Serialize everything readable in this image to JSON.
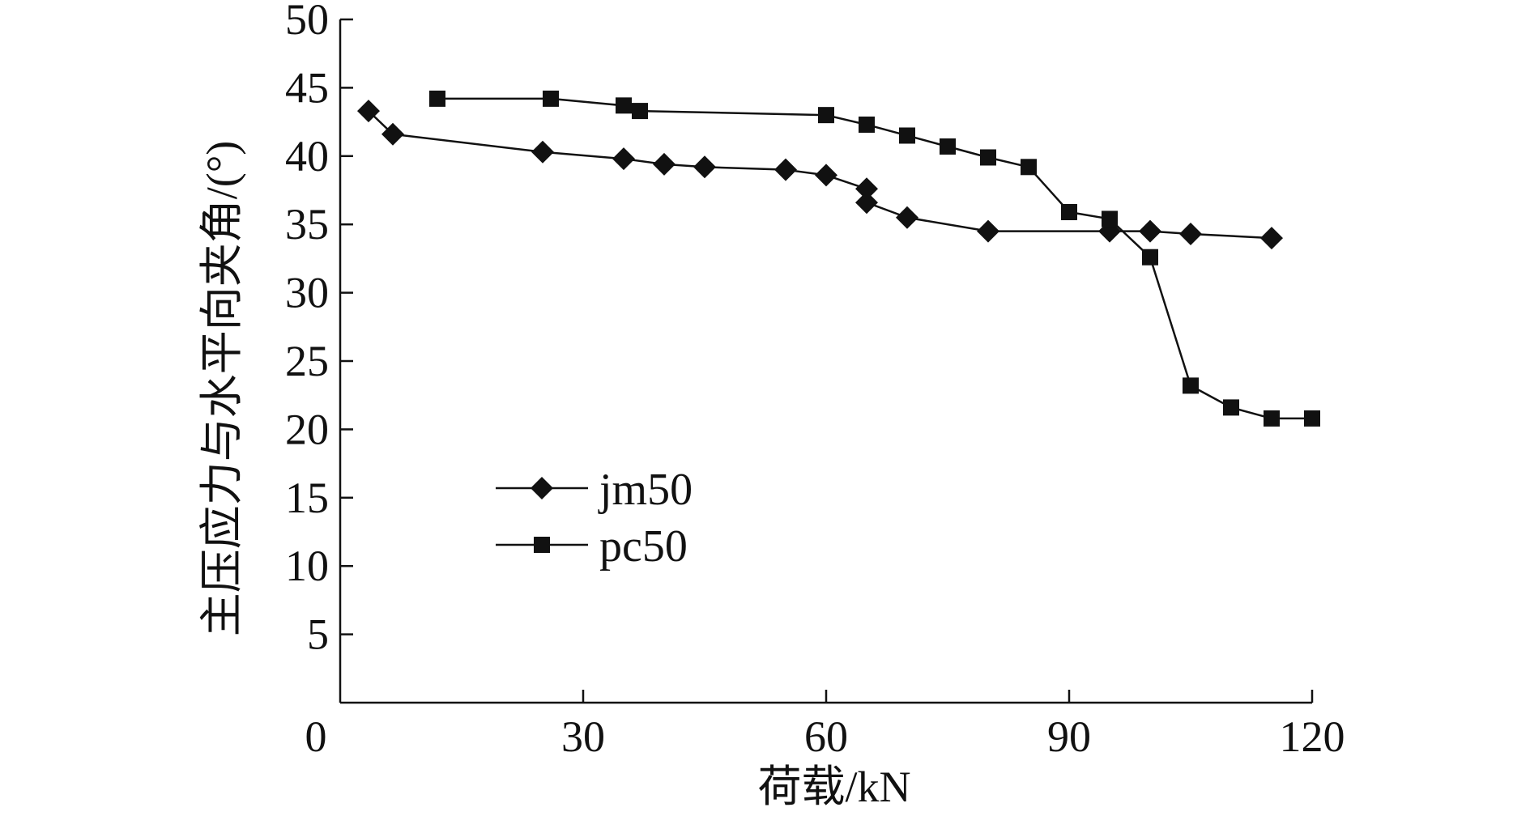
{
  "chart_data": {
    "type": "line",
    "title": "",
    "xlabel": "荷载/kN",
    "ylabel": "主压应力与水平向夹角/(°)",
    "xlim": [
      0,
      120
    ],
    "ylim": [
      0,
      50
    ],
    "x_ticks": [
      0,
      30,
      60,
      90,
      120
    ],
    "y_ticks": [
      5,
      10,
      15,
      20,
      25,
      30,
      35,
      40,
      45,
      50
    ],
    "grid": false,
    "legend": {
      "position": "lower-left"
    },
    "line_color": "#111111",
    "series": [
      {
        "name": "jm50",
        "marker": "diamond",
        "x": [
          3.5,
          6.5,
          25,
          35,
          40,
          45,
          55,
          60,
          65,
          65,
          70,
          80,
          95,
          100,
          105,
          115
        ],
        "y": [
          43.3,
          41.6,
          40.3,
          39.8,
          39.4,
          39.2,
          39.0,
          38.6,
          37.6,
          36.6,
          35.5,
          34.5,
          34.5,
          34.5,
          34.3,
          34.0
        ]
      },
      {
        "name": "pc50",
        "marker": "square",
        "x": [
          12,
          26,
          35,
          37,
          60,
          65,
          70,
          75,
          80,
          85,
          90,
          95,
          100,
          105,
          110,
          115,
          120
        ],
        "y": [
          44.2,
          44.2,
          43.7,
          43.3,
          43.0,
          42.3,
          41.5,
          40.7,
          39.9,
          39.2,
          35.9,
          35.4,
          32.6,
          23.2,
          21.6,
          20.8,
          20.8
        ]
      }
    ]
  }
}
